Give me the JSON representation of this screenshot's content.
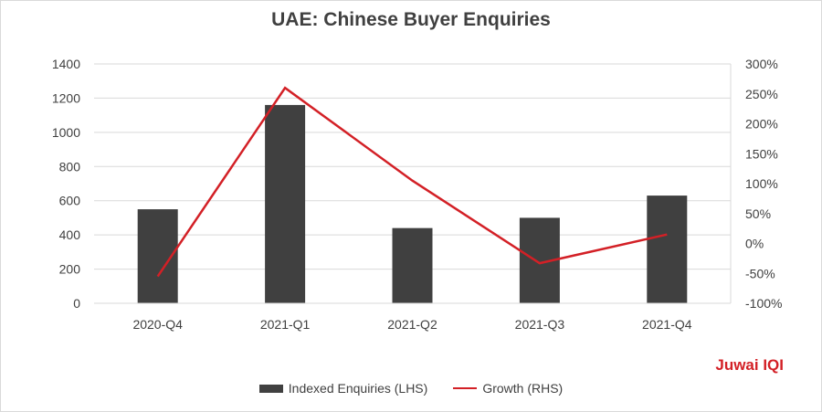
{
  "chart_data": {
    "type": "bar",
    "title": "UAE: Chinese Buyer Enquiries",
    "categories": [
      "2020-Q4",
      "2021-Q1",
      "2021-Q2",
      "2021-Q3",
      "2021-Q4"
    ],
    "series": [
      {
        "name": "Indexed Enquiries (LHS)",
        "type": "bar",
        "axis": "left",
        "values": [
          550,
          1160,
          440,
          500,
          630
        ]
      },
      {
        "name": "Growth (RHS)",
        "type": "line",
        "axis": "right",
        "values": [
          -0.55,
          2.6,
          1.05,
          -0.33,
          0.15
        ]
      }
    ],
    "left_axis": {
      "min": 0,
      "max": 1400,
      "ticks": [
        "0",
        "200",
        "400",
        "600",
        "800",
        "1000",
        "1200",
        "1400"
      ]
    },
    "right_axis": {
      "min": -1,
      "max": 3,
      "ticks": [
        "-100%",
        "-50%",
        "0%",
        "50%",
        "100%",
        "150%",
        "200%",
        "250%",
        "300%"
      ]
    },
    "grid": "horizontal",
    "legend_position": "bottom",
    "colors": {
      "bar": "#404040",
      "line": "#d32026",
      "grid": "#d9d9d9",
      "text": "#404040"
    }
  },
  "brand": "Juwai IQI"
}
